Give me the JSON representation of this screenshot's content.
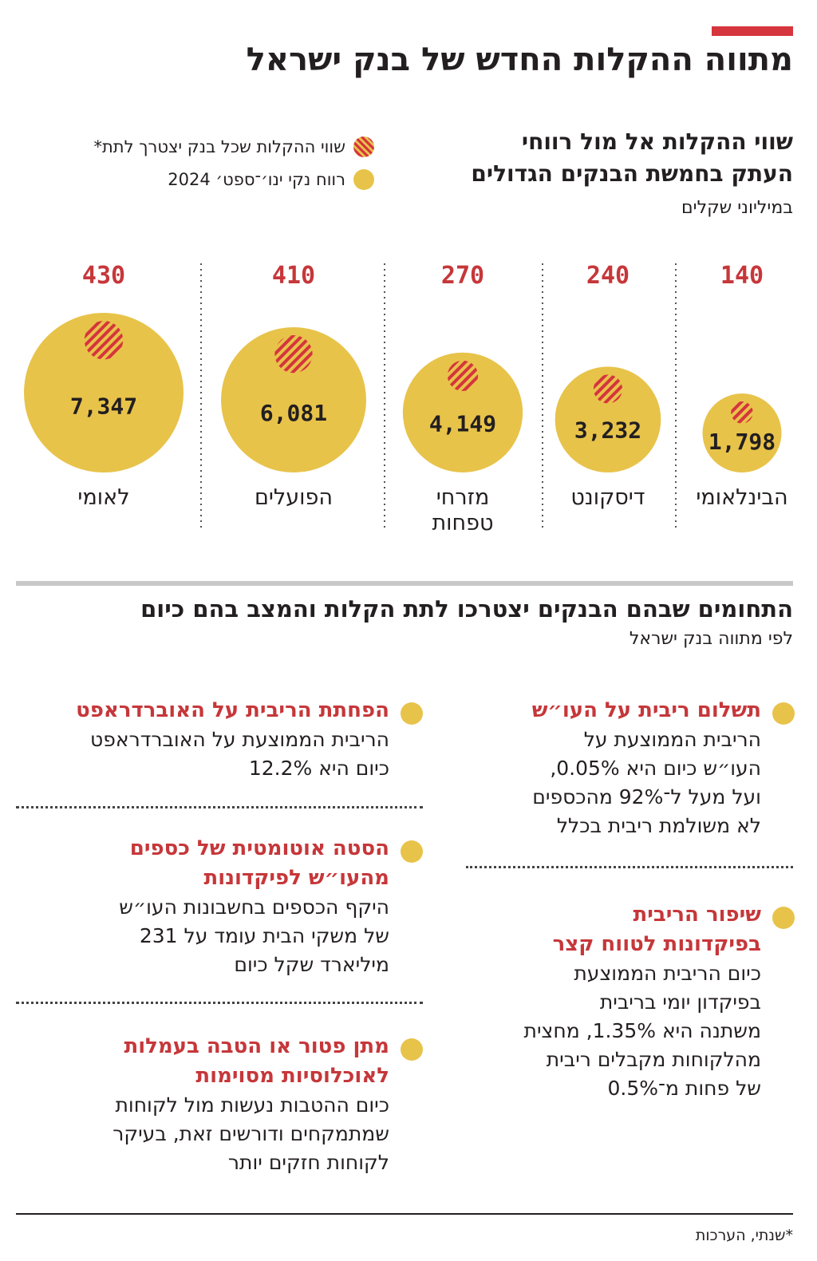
{
  "title": "מתווה ההקלות החדש של בנק ישראל",
  "chart_data": {
    "type": "bubble",
    "title_lines": [
      "שווי ההקלות אל מול רווחי",
      "העתק בחמשת הבנקים הגדולים"
    ],
    "subtitle": "במיליוני שקלים",
    "legend": [
      {
        "label": "שווי ההקלות שכל בנק יצטרך לתת*",
        "color": "#d5353c",
        "pattern": "hatched"
      },
      {
        "label": "רווח נקי ינו׳־ספט׳ 2024",
        "color": "#e8c34a",
        "pattern": "solid"
      }
    ],
    "categories": [
      "הבינלאומי",
      "דיסקונט",
      "מזרחי טפחות",
      "הפועלים",
      "לאומי"
    ],
    "series": [
      {
        "name": "שווי ההקלות שכל בנק יצטרך לתת*",
        "values": [
          140,
          240,
          270,
          410,
          430
        ],
        "labels": [
          "140",
          "240",
          "270",
          "410",
          "430"
        ]
      },
      {
        "name": "רווח נקי ינו׳־ספט׳ 2024",
        "values": [
          1798,
          3232,
          4149,
          6081,
          7347
        ],
        "labels": [
          "1,798",
          "3,232",
          "4,149",
          "6,081",
          "7,347"
        ]
      }
    ],
    "label_lines": [
      [
        "הבינלאומי"
      ],
      [
        "דיסקונט"
      ],
      [
        "מזרחי",
        "טפחות"
      ],
      [
        "הפועלים"
      ],
      [
        "לאומי"
      ]
    ],
    "colors": {
      "profit": "#e8c34a",
      "relief": "#d5353c",
      "value_label": "#c6373a"
    }
  },
  "section": {
    "title": "התחומים שבהם הבנקים יצטרכו לתת הקלות והמצב בהם כיום",
    "subtitle": "לפי מתווה בנק ישראל"
  },
  "items": {
    "right_1": {
      "title": [
        "תשלום ריבית על העו״ש"
      ],
      "text": [
        "הריבית הממוצעת על",
        "העו״ש כיום היא 0.05%,",
        "ועל מעל ל־92% מהכספים",
        "לא משולמת ריבית בכלל"
      ]
    },
    "right_2": {
      "title": [
        "שיפור הריבית",
        "בפיקדונות לטווח קצר"
      ],
      "text": [
        "כיום הריבית הממוצעת",
        "בפיקדון יומי בריבית",
        "משתנה היא 1.35%, מחצית",
        "מהלקוחות מקבלים ריבית",
        "של פחות מ־0.5%"
      ]
    },
    "left_1": {
      "title": [
        "הפחתת הריבית על האוברדראפט"
      ],
      "text": [
        "הריבית הממוצעת על האוברדראפט",
        "כיום היא 12.2%"
      ]
    },
    "left_2": {
      "title": [
        "הסטה אוטומטית של כספים",
        "מהעו״ש לפיקדונות"
      ],
      "text": [
        "היקף הכספים בחשבונות העו״ש",
        "של משקי הבית עומד על 231",
        "מיליארד שקל כיום"
      ]
    },
    "left_3": {
      "title": [
        "מתן פטור או הטבה בעמלות",
        "לאוכלוסיות מסוימות"
      ],
      "text": [
        "כיום ההטבות נעשות מול לקוחות",
        "שמתמקחים ודורשים זאת, בעיקר",
        "לקוחות חזקים יותר"
      ]
    }
  },
  "footnote": "*שנתי, הערכות"
}
